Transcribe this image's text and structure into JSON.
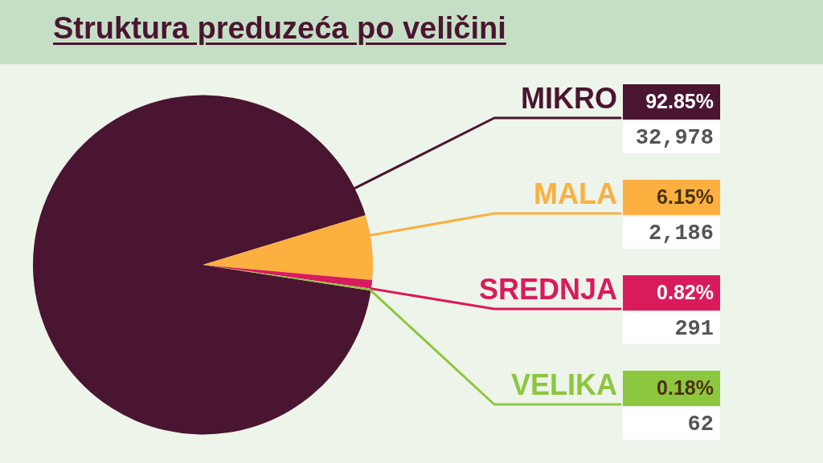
{
  "chart_data": {
    "type": "pie",
    "title": "Struktura preduzeća po veličini",
    "categories": [
      "MIKRO",
      "MALA",
      "SREDNJA",
      "VELIKA"
    ],
    "values": [
      92.85,
      6.15,
      0.82,
      0.18
    ],
    "annotations": [
      "92.85%",
      "32,978",
      "6.15%",
      "2,186",
      "0.82%",
      "291",
      "0.18%",
      "62"
    ],
    "colors": [
      "#4a1530",
      "#fbb040",
      "#d91b5c",
      "#8dc63f"
    ],
    "legend": "right"
  }
}
